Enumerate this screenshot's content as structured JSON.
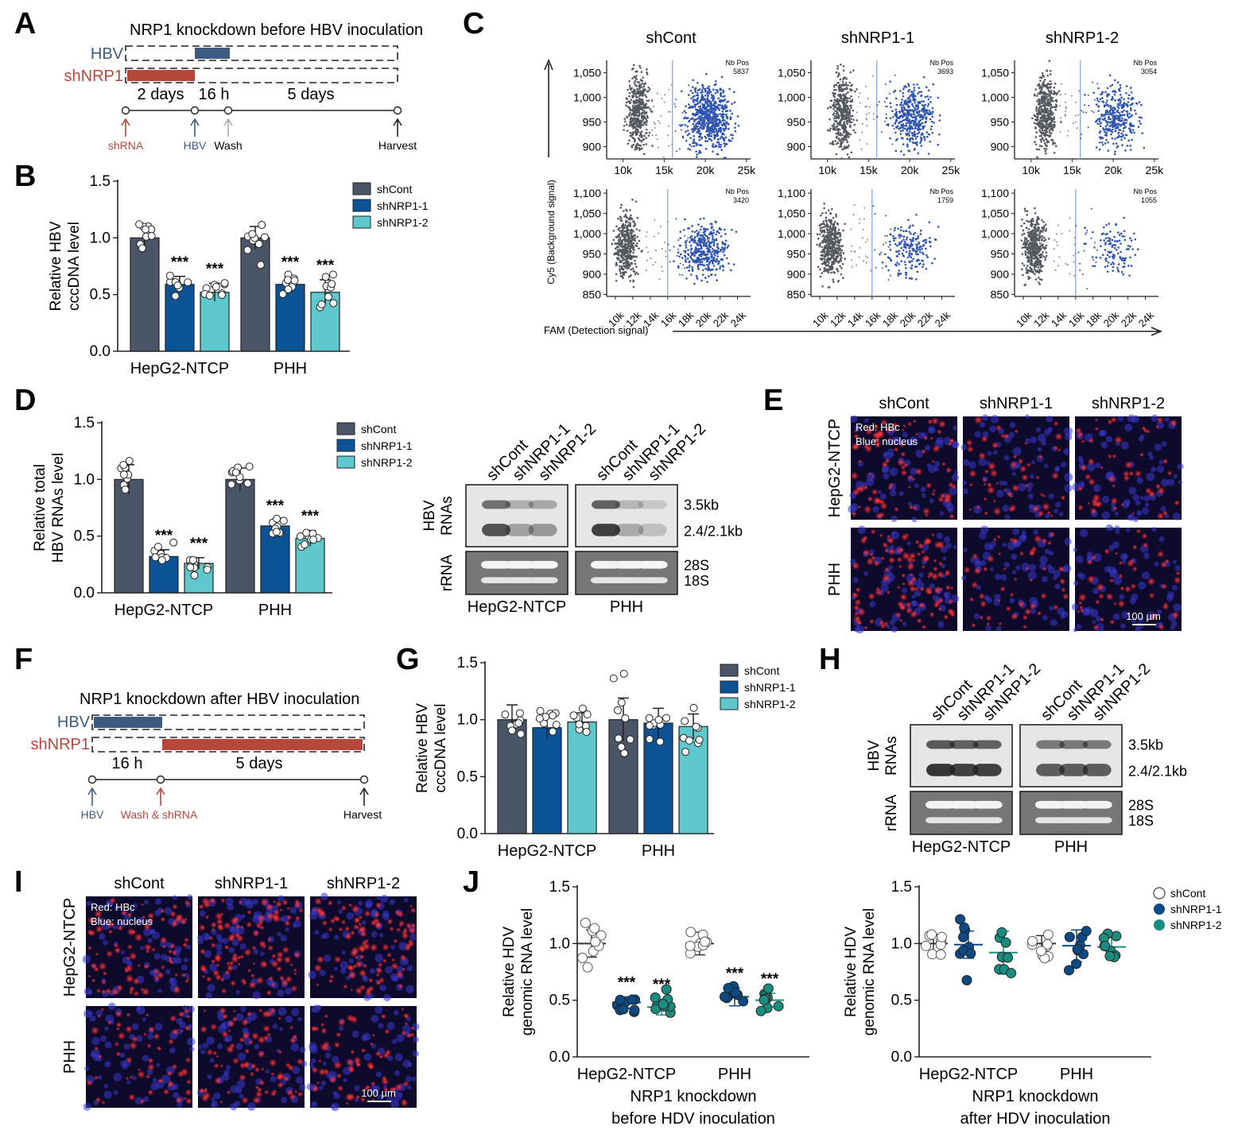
{
  "panel_letters": [
    "A",
    "B",
    "C",
    "D",
    "E",
    "F",
    "G",
    "H",
    "I",
    "J"
  ],
  "colors": {
    "shCont": "#4a5568",
    "shNRP1_1": "#0b5394",
    "shNRP1_2": "#5ec8cc",
    "hbv": "#3d5a80",
    "shNRP1": "#b5483b",
    "gate": "#8aa6d8",
    "gray_dots": "#55595f",
    "blue_dots": "#2f55b0",
    "j_teal": "#1a8c80",
    "j_blue": "#0c4a85"
  },
  "panelA": {
    "title": "NRP1 knockdown before HBV inoculation",
    "rows": [
      "HBV",
      "shNRP1"
    ],
    "durations": [
      "2 days",
      "16 h",
      "5 days"
    ],
    "events": [
      "shRNA",
      "HBV",
      "Wash",
      "Harvest"
    ]
  },
  "panelF": {
    "title": "NRP1 knockdown after HBV inoculation",
    "rows": [
      "HBV",
      "shNRP1"
    ],
    "durations": [
      "16 h",
      "5 days"
    ],
    "events": [
      "HBV",
      "Wash & shRNA",
      "Harvest"
    ]
  },
  "legend": [
    "shCont",
    "shNRP1-1",
    "shNRP1-2"
  ],
  "sig": "***",
  "panelC": {
    "columns": [
      "shCont",
      "shNRP1-1",
      "shNRP1-2"
    ],
    "ylabel": "Cy5 (Background signal)",
    "xlabel": "FAM (Detection signal)",
    "nbpos_label": "Nb Pos",
    "top": {
      "yticks": [
        "1,050",
        "1,000",
        "950",
        "900"
      ],
      "xticks": [
        "10k",
        "15k",
        "20k",
        "25k"
      ],
      "nbpos": [
        "5837",
        "3693",
        "3054"
      ]
    },
    "bottom": {
      "yticks": [
        "1,100",
        "1,050",
        "1,000",
        "950",
        "900",
        "850"
      ],
      "xticks": [
        "10k",
        "12k",
        "14k",
        "16k",
        "18k",
        "20k",
        "22k",
        "24k"
      ],
      "nbpos": [
        "3420",
        "1759",
        "1055"
      ]
    }
  },
  "blots": {
    "lanes": [
      "shCont",
      "shNRP1-1",
      "shNRP1-2"
    ],
    "group_labels": [
      "HepG2-NTCP",
      "PHH"
    ],
    "row_labels": [
      "HBV",
      "RNAs",
      "rRNA"
    ],
    "band_labels": [
      "3.5kb",
      "2.4/2.1kb",
      "28S",
      "18S"
    ]
  },
  "micro": {
    "columns": [
      "shCont",
      "shNRP1-1",
      "shNRP1-2"
    ],
    "rows": [
      "HepG2-NTCP",
      "PHH"
    ],
    "legend": [
      "Red: HBc",
      "Blue: nucleus"
    ],
    "scale": "100 µm"
  },
  "chart_data": [
    {
      "panel": "B",
      "type": "bar",
      "title": "",
      "ylabel": "Relative HBV cccDNA level",
      "categories": [
        "HepG2-NTCP",
        "PHH"
      ],
      "ylim": [
        0,
        1.5
      ],
      "yticks": [
        "0.0",
        "0.5",
        "1.0",
        "1.5"
      ],
      "series": [
        {
          "name": "shCont",
          "values": [
            1.0,
            1.0
          ],
          "errors": [
            0.11,
            0.1
          ]
        },
        {
          "name": "shNRP1-1",
          "values": [
            0.59,
            0.59
          ],
          "errors": [
            0.07,
            0.07
          ]
        },
        {
          "name": "shNRP1-2",
          "values": [
            0.52,
            0.52
          ],
          "errors": [
            0.08,
            0.11
          ]
        }
      ],
      "annotations": [
        {
          "group": 0,
          "series": 1,
          "text": "***"
        },
        {
          "group": 0,
          "series": 2,
          "text": "***"
        },
        {
          "group": 1,
          "series": 1,
          "text": "***"
        },
        {
          "group": 1,
          "series": 2,
          "text": "***"
        }
      ]
    },
    {
      "panel": "D",
      "type": "bar",
      "title": "",
      "ylabel": "Relative total HBV RNAs level",
      "categories": [
        "HepG2-NTCP",
        "PHH"
      ],
      "ylim": [
        0,
        1.5
      ],
      "yticks": [
        "0.0",
        "0.5",
        "1.0",
        "1.5"
      ],
      "series": [
        {
          "name": "shCont",
          "values": [
            1.0,
            1.0
          ],
          "errors": [
            0.13,
            0.1
          ]
        },
        {
          "name": "shNRP1-1",
          "values": [
            0.32,
            0.59
          ],
          "errors": [
            0.06,
            0.05
          ]
        },
        {
          "name": "shNRP1-2",
          "values": [
            0.26,
            0.48
          ],
          "errors": [
            0.05,
            0.07
          ]
        }
      ],
      "annotations": [
        {
          "group": 0,
          "series": 1,
          "text": "***"
        },
        {
          "group": 0,
          "series": 2,
          "text": "***"
        },
        {
          "group": 1,
          "series": 1,
          "text": "***"
        },
        {
          "group": 1,
          "series": 2,
          "text": "***"
        }
      ]
    },
    {
      "panel": "G",
      "type": "bar",
      "title": "",
      "ylabel": "Relative HBV cccDNA level",
      "categories": [
        "HepG2-NTCP",
        "PHH"
      ],
      "ylim": [
        0,
        1.5
      ],
      "yticks": [
        "0.0",
        "0.5",
        "1.0",
        "1.5"
      ],
      "series": [
        {
          "name": "shCont",
          "values": [
            1.0,
            1.0
          ],
          "errors": [
            0.13,
            0.19
          ]
        },
        {
          "name": "shNRP1-1",
          "values": [
            0.93,
            0.97
          ],
          "errors": [
            0.09,
            0.13
          ]
        },
        {
          "name": "shNRP1-2",
          "values": [
            0.98,
            0.94
          ],
          "errors": [
            0.08,
            0.11
          ]
        }
      ],
      "annotations": []
    },
    {
      "panel": "J-left",
      "type": "scatter",
      "title": "",
      "ylabel": "Relative HDV genomic RNA level",
      "xlabel": "NRP1 knockdown before HDV inoculation",
      "categories": [
        "HepG2-NTCP",
        "PHH"
      ],
      "ylim": [
        0,
        1.5
      ],
      "yticks": [
        "0.0",
        "0.5",
        "1.0",
        "1.5"
      ],
      "series": [
        {
          "name": "shCont",
          "values": [
            1.0,
            1.0
          ],
          "errors": [
            0.12,
            0.1
          ]
        },
        {
          "name": "shNRP1-1",
          "values": [
            0.48,
            0.53
          ],
          "errors": [
            0.05,
            0.08
          ]
        },
        {
          "name": "shNRP1-2",
          "values": [
            0.44,
            0.5
          ],
          "errors": [
            0.07,
            0.06
          ]
        }
      ],
      "annotations": [
        {
          "group": 0,
          "series": 1,
          "text": "***"
        },
        {
          "group": 0,
          "series": 2,
          "text": "***"
        },
        {
          "group": 1,
          "series": 1,
          "text": "***"
        },
        {
          "group": 1,
          "series": 2,
          "text": "***"
        }
      ]
    },
    {
      "panel": "J-right",
      "type": "scatter",
      "title": "",
      "ylabel": "Relative HDV genomic RNA level",
      "xlabel": "NRP1 knockdown after HDV inoculation",
      "categories": [
        "HepG2-NTCP",
        "PHH"
      ],
      "ylim": [
        0,
        1.5
      ],
      "yticks": [
        "0.0",
        "0.5",
        "1.0",
        "1.5"
      ],
      "series": [
        {
          "name": "shCont",
          "values": [
            1.0,
            1.0
          ],
          "errors": [
            0.08,
            0.07
          ]
        },
        {
          "name": "shNRP1-1",
          "values": [
            0.99,
            0.98
          ],
          "errors": [
            0.12,
            0.14
          ]
        },
        {
          "name": "shNRP1-2",
          "values": [
            0.92,
            0.97
          ],
          "errors": [
            0.19,
            0.1
          ]
        }
      ],
      "annotations": []
    }
  ]
}
